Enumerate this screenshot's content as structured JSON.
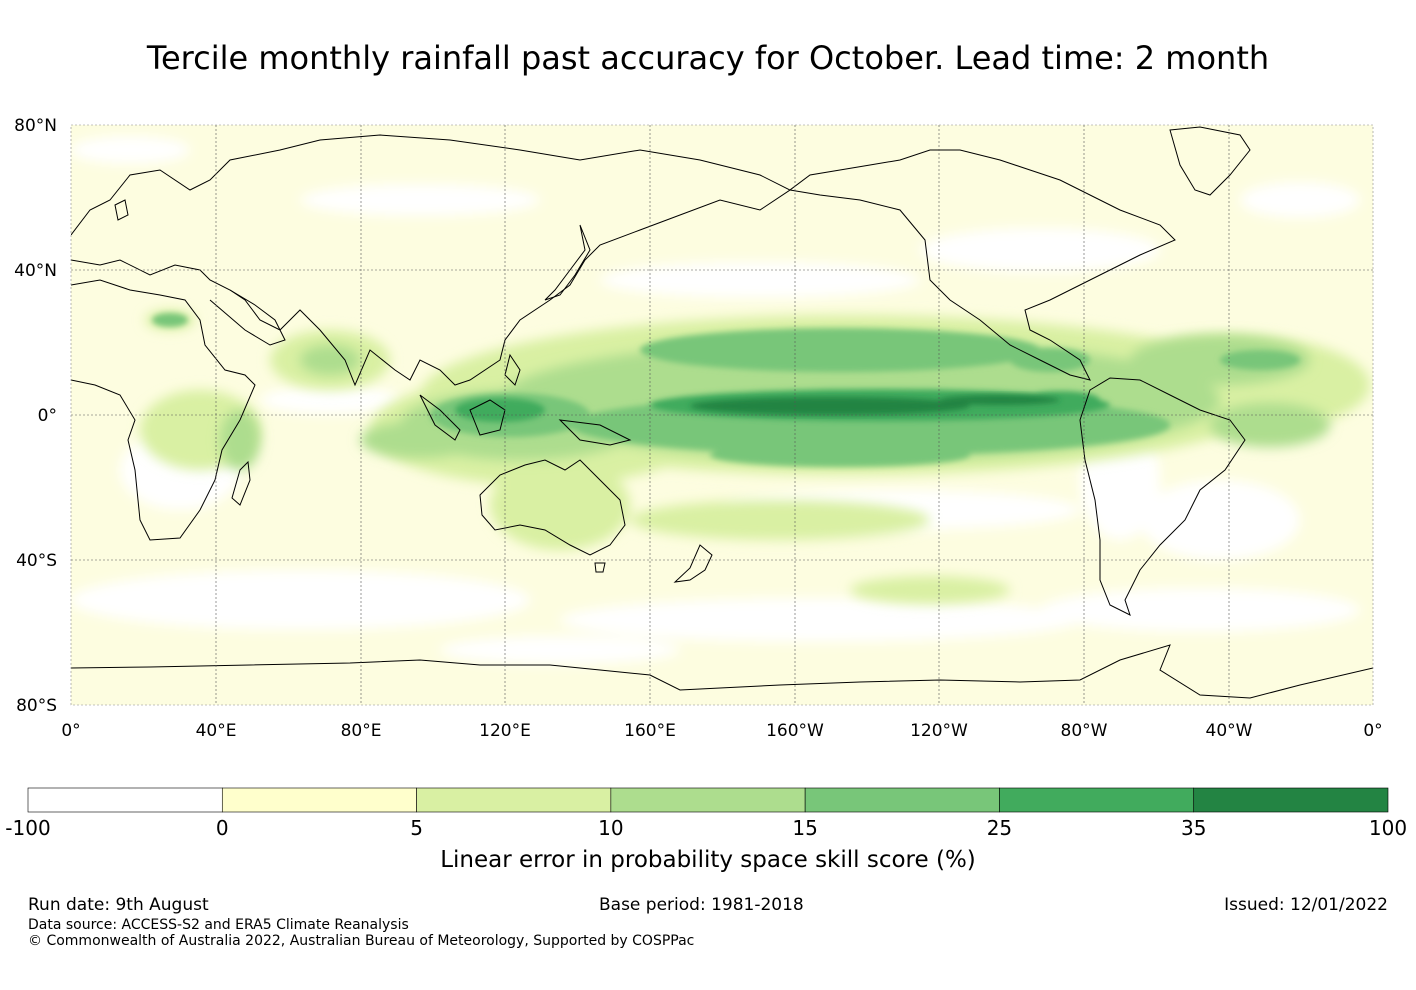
{
  "title": "Tercile monthly rainfall past accuracy for October. Lead time: 2 month",
  "axes": {
    "lat_labels": [
      "80°N",
      "40°N",
      "0°",
      "40°S",
      "80°S"
    ],
    "lon_labels": [
      "0°",
      "40°E",
      "80°E",
      "120°E",
      "160°E",
      "160°W",
      "120°W",
      "80°W",
      "40°W",
      "0°"
    ]
  },
  "colorbar": {
    "boundaries": [
      "-100",
      "0",
      "5",
      "10",
      "15",
      "25",
      "35",
      "100"
    ],
    "colors": [
      "#ffffff",
      "#ffffcc",
      "#d9f0a3",
      "#addd8e",
      "#78c679",
      "#41ab5d",
      "#238443"
    ],
    "label": "Linear error in probability space skill score (%)"
  },
  "skill_regions": [
    {
      "name": "equatorial-pacific-core",
      "min_score": 35
    },
    {
      "name": "north-pacific-band",
      "min_score": 15
    },
    {
      "name": "maritime-continent",
      "min_score": 15
    },
    {
      "name": "south-pacific-band",
      "min_score": 10
    }
  ],
  "footer": {
    "run_date": "Run date: 9th August",
    "base_period": "Base period: 1981-2018",
    "issued": "Issued: 12/01/2022",
    "data_source": "Data source: ACCESS-S2 and ERA5 Climate Reanalysis",
    "copyright": "© Commonwealth of Australia 2022, Australian Bureau of Meteorology, Supported by COSPPac"
  }
}
